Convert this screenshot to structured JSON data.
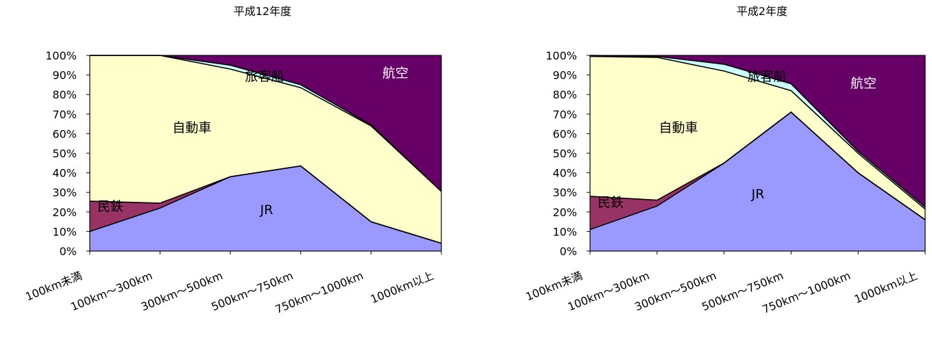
{
  "chart_data": [
    {
      "type": "area",
      "stacked": true,
      "percent": true,
      "title": "平成12年度",
      "categories": [
        "100km未満",
        "100km～300km",
        "300km～500km",
        "500km～750km",
        "750km～1000km",
        "1000km以上"
      ],
      "ylim": [
        0,
        100
      ],
      "yticks": [
        "0%",
        "10%",
        "20%",
        "30%",
        "40%",
        "50%",
        "60%",
        "70%",
        "80%",
        "90%",
        "100%"
      ],
      "series": [
        {
          "name": "JR",
          "color": "#9999ff",
          "values": [
            10,
            22,
            38,
            43.5,
            15,
            4
          ]
        },
        {
          "name": "民鉄",
          "color": "#993366",
          "values": [
            15.5,
            2.5,
            0,
            0,
            0,
            0
          ]
        },
        {
          "name": "自動車",
          "color": "#ffffcc",
          "values": [
            74.5,
            75.5,
            55,
            40,
            49,
            26.5
          ]
        },
        {
          "name": "旅客船",
          "color": "#ccffff",
          "values": [
            0,
            0,
            2,
            1.5,
            0.5,
            0
          ]
        },
        {
          "name": "航空",
          "color": "#660066",
          "values": [
            0,
            0,
            5,
            15,
            35.5,
            69.5
          ]
        }
      ]
    },
    {
      "type": "area",
      "stacked": true,
      "percent": true,
      "title": "平成2年度",
      "categories": [
        "100km未満",
        "100km～300km",
        "300km～500km",
        "500km～750km",
        "750km～1000km",
        "1000km以上"
      ],
      "ylim": [
        0,
        100
      ],
      "yticks": [
        "0%",
        "10%",
        "20%",
        "30%",
        "40%",
        "50%",
        "60%",
        "70%",
        "80%",
        "90%",
        "100%"
      ],
      "series": [
        {
          "name": "JR",
          "color": "#9999ff",
          "values": [
            11,
            23,
            45,
            71,
            40,
            16
          ]
        },
        {
          "name": "民鉄",
          "color": "#993366",
          "values": [
            17,
            3,
            0,
            0,
            0,
            0
          ]
        },
        {
          "name": "自動車",
          "color": "#ffffcc",
          "values": [
            71.5,
            73,
            47,
            11,
            10,
            5.5
          ]
        },
        {
          "name": "旅客船",
          "color": "#ccffff",
          "values": [
            0.5,
            0.5,
            3.5,
            3.5,
            1,
            1
          ]
        },
        {
          "name": "航空",
          "color": "#660066",
          "values": [
            0,
            0.5,
            4.5,
            14.5,
            49,
            77.5
          ]
        }
      ]
    }
  ]
}
